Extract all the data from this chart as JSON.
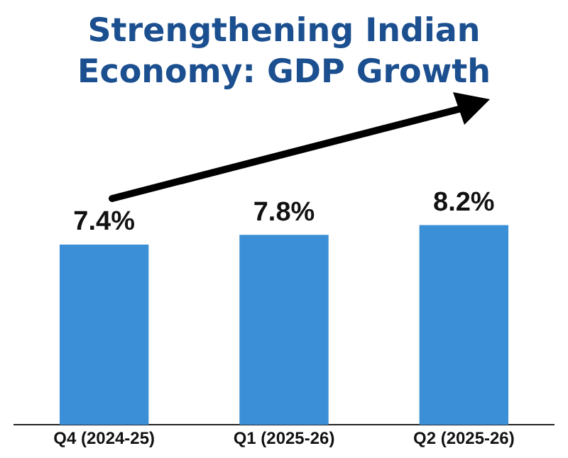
{
  "chart_data": {
    "type": "bar",
    "title": "Strengthening Indian Economy: GDP Growth",
    "categories": [
      "Q4 (2024-25)",
      "Q1 (2025-26)",
      "Q2 (2025-26)"
    ],
    "values": [
      7.4,
      7.8,
      8.2
    ],
    "value_labels": [
      "7.4%",
      "7.8%",
      "8.2%"
    ],
    "color": "#3b8fd6",
    "tick_labels": "x",
    "grid": false,
    "legend": false
  }
}
